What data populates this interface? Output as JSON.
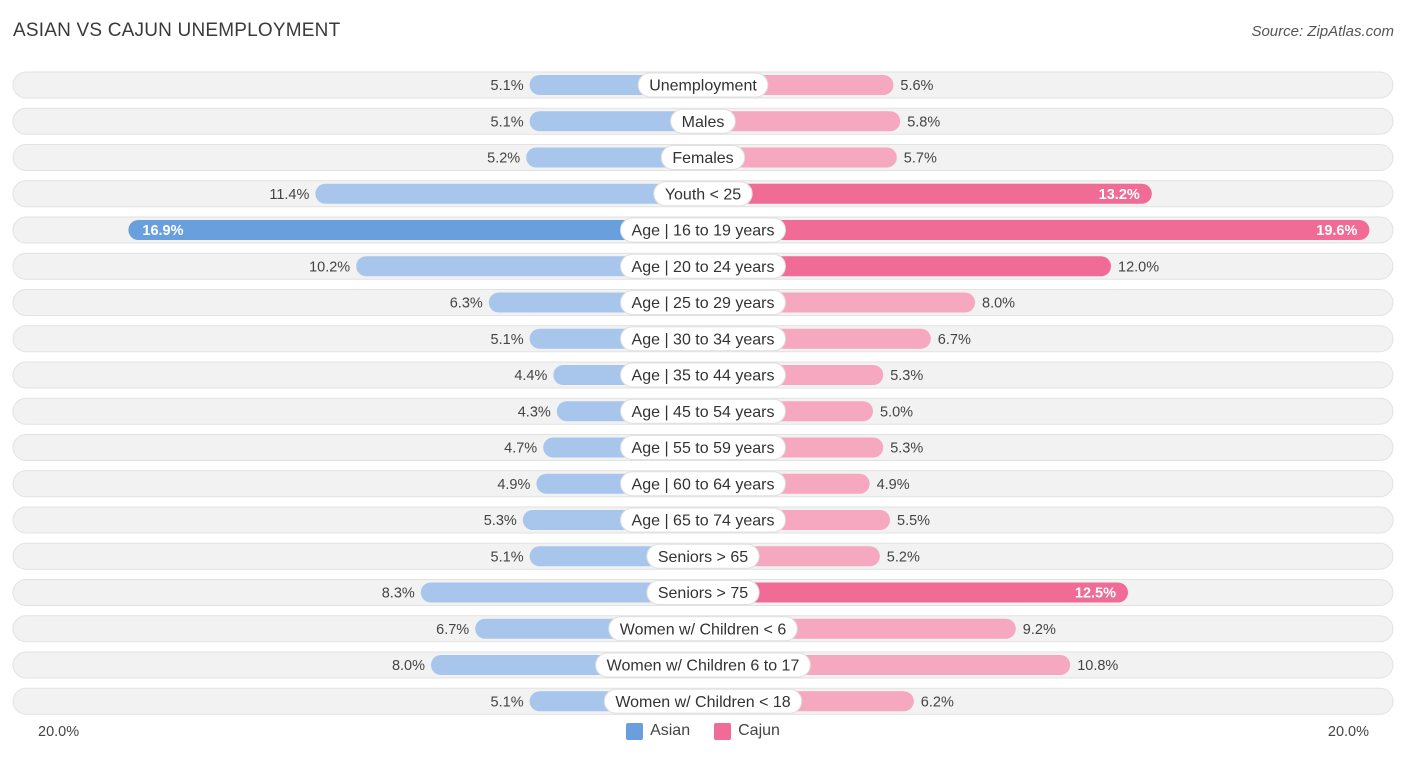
{
  "title": "ASIAN VS CAJUN UNEMPLOYMENT",
  "source": "Source: ZipAtlas.com",
  "axis": {
    "left_label": "20.0%",
    "right_label": "20.0%"
  },
  "legend": [
    {
      "name": "Asian",
      "color": "#6a9fde"
    },
    {
      "name": "Cajun",
      "color": "#f06b96"
    }
  ],
  "colors": {
    "asian_light": "#a8c6ec",
    "asian_strong": "#6a9fde",
    "cajun_light": "#f5a8c0",
    "cajun_strong": "#f06b96",
    "row_bg": "#f2f2f2",
    "row_border": "#e2e2e2"
  },
  "chart_data": {
    "type": "bar",
    "orientation": "diverging-horizontal",
    "title": "ASIAN VS CAJUN UNEMPLOYMENT",
    "xlim": [
      -20,
      20
    ],
    "unit": "%",
    "categories": [
      "Unemployment",
      "Males",
      "Females",
      "Youth < 25",
      "Age | 16 to 19 years",
      "Age | 20 to 24 years",
      "Age | 25 to 29 years",
      "Age | 30 to 34 years",
      "Age | 35 to 44 years",
      "Age | 45 to 54 years",
      "Age | 55 to 59 years",
      "Age | 60 to 64 years",
      "Age | 65 to 74 years",
      "Seniors > 65",
      "Seniors > 75",
      "Women w/ Children < 6",
      "Women w/ Children 6 to 17",
      "Women w/ Children < 18"
    ],
    "series": [
      {
        "name": "Asian",
        "values": [
          5.1,
          5.1,
          5.2,
          11.4,
          16.9,
          10.2,
          6.3,
          5.1,
          4.4,
          4.3,
          4.7,
          4.9,
          5.3,
          5.1,
          8.3,
          6.7,
          8.0,
          5.1
        ],
        "labels": [
          "5.1%",
          "5.1%",
          "5.2%",
          "11.4%",
          "16.9%",
          "10.2%",
          "6.3%",
          "5.1%",
          "4.4%",
          "4.3%",
          "4.7%",
          "4.9%",
          "5.3%",
          "5.1%",
          "8.3%",
          "6.7%",
          "8.0%",
          "5.1%"
        ]
      },
      {
        "name": "Cajun",
        "values": [
          5.6,
          5.8,
          5.7,
          13.2,
          19.6,
          12.0,
          8.0,
          6.7,
          5.3,
          5.0,
          5.3,
          4.9,
          5.5,
          5.2,
          12.5,
          9.2,
          10.8,
          6.2
        ],
        "labels": [
          "5.6%",
          "5.8%",
          "5.7%",
          "13.2%",
          "19.6%",
          "12.0%",
          "8.0%",
          "6.7%",
          "5.3%",
          "5.0%",
          "5.3%",
          "4.9%",
          "5.5%",
          "5.2%",
          "12.5%",
          "9.2%",
          "10.8%",
          "6.2%"
        ]
      }
    ]
  }
}
